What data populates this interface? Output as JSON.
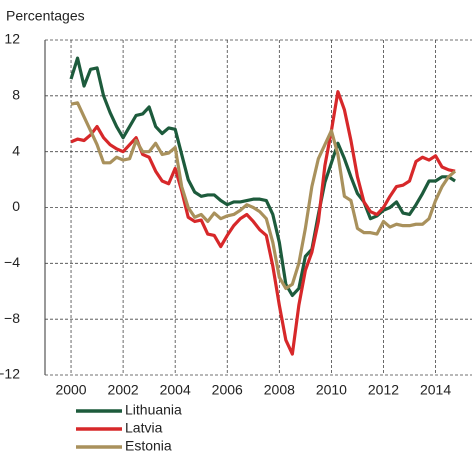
{
  "chart_data": {
    "type": "line",
    "y_axis_title": "Percentages",
    "x": [
      2000,
      2000.25,
      2000.5,
      2000.75,
      2001,
      2001.25,
      2001.5,
      2001.75,
      2002,
      2002.25,
      2002.5,
      2002.75,
      2003,
      2003.25,
      2003.5,
      2003.75,
      2004,
      2004.25,
      2004.5,
      2004.75,
      2005,
      2005.25,
      2005.5,
      2005.75,
      2006,
      2006.25,
      2006.5,
      2006.75,
      2007,
      2007.25,
      2007.5,
      2007.75,
      2008,
      2008.25,
      2008.5,
      2008.75,
      2009,
      2009.25,
      2009.5,
      2009.75,
      2010,
      2010.25,
      2010.5,
      2010.75,
      2011,
      2011.25,
      2011.5,
      2011.75,
      2012,
      2012.25,
      2012.5,
      2012.75,
      2013,
      2013.25,
      2013.5,
      2013.75,
      2014,
      2014.25,
      2014.5,
      2014.75
    ],
    "series": [
      {
        "name": "Lithuania",
        "color": "#1d5b3c",
        "values": [
          9.2,
          10.7,
          8.7,
          9.9,
          10,
          8,
          6.8,
          5.8,
          5,
          5.8,
          6.6,
          6.7,
          7.2,
          5.8,
          5.3,
          5.7,
          5.6,
          3.8,
          2,
          1.1,
          0.8,
          0.9,
          0.9,
          0.5,
          0.2,
          0.4,
          0.4,
          0.5,
          0.6,
          0.6,
          0.5,
          -0.5,
          -2.5,
          -5.5,
          -6.3,
          -5.8,
          -3.5,
          -3,
          -0.5,
          1.8,
          3.2,
          4.6,
          3.5,
          2.2,
          1,
          0.4,
          -0.8,
          -0.6,
          -0.2,
          0,
          0.4,
          -0.4,
          -0.5,
          0.2,
          1,
          1.9,
          1.9,
          2.2,
          2.2,
          1.9
        ]
      },
      {
        "name": "Latvia",
        "color": "#d7282a",
        "values": [
          4.7,
          4.9,
          4.8,
          5.2,
          5.8,
          5,
          4.5,
          4.2,
          4,
          4.5,
          5,
          3.8,
          3.6,
          2.6,
          1.9,
          1.7,
          2.8,
          1.2,
          -0.7,
          -1,
          -0.9,
          -1.9,
          -2,
          -2.8,
          -2,
          -1.3,
          -0.8,
          -0.5,
          -1,
          -1.6,
          -2,
          -4.2,
          -7,
          -9.5,
          -10.5,
          -7,
          -4.5,
          -3.2,
          -1,
          3,
          5.5,
          8.3,
          7,
          4.8,
          2.2,
          0.4,
          -0.3,
          -0.5,
          0,
          0.8,
          1.5,
          1.6,
          1.9,
          3.3,
          3.6,
          3.4,
          3.7,
          2.9,
          2.7,
          2.6
        ]
      },
      {
        "name": "Estonia",
        "color": "#a9915c",
        "values": [
          7.4,
          7.5,
          6.5,
          5.5,
          4.5,
          3.2,
          3.2,
          3.6,
          3.4,
          3.5,
          4.8,
          4,
          4,
          4.6,
          3.8,
          3.9,
          4.3,
          1.5,
          0,
          -0.7,
          -0.5,
          -1,
          -0.4,
          -0.8,
          -0.6,
          -0.5,
          -0.2,
          0.2,
          0,
          -0.3,
          -0.8,
          -2.5,
          -5,
          -5.8,
          -5.5,
          -4,
          -1.5,
          1.5,
          3.5,
          4.5,
          5.5,
          3.8,
          0.8,
          0.5,
          -1.5,
          -1.8,
          -1.8,
          -1.9,
          -1,
          -1.4,
          -1.2,
          -1.3,
          -1.3,
          -1.2,
          -1.2,
          -0.8,
          0.5,
          1.5,
          2.2,
          2.6
        ]
      }
    ],
    "xlim": [
      1999,
      2015.4
    ],
    "xticks": [
      2000,
      2002,
      2004,
      2006,
      2008,
      2010,
      2012,
      2014
    ],
    "ylim": [
      -12,
      12
    ],
    "yticks": [
      {
        "value": -12,
        "label": "−12"
      },
      {
        "value": -8,
        "label": "−8"
      },
      {
        "value": -4,
        "label": "−4"
      },
      0,
      4,
      8,
      12
    ],
    "grid": true
  }
}
